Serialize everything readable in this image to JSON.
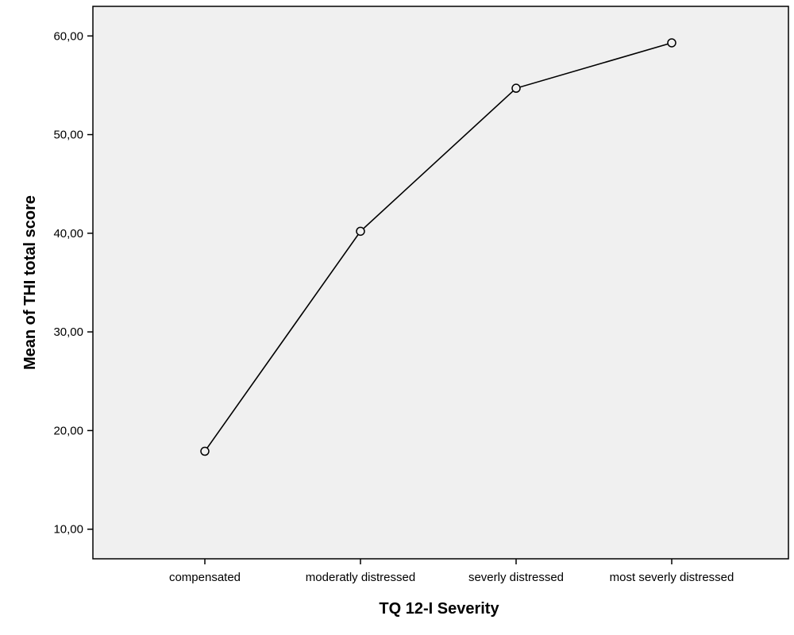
{
  "chart_data": {
    "type": "line",
    "categories": [
      "compensated",
      "moderatly distressed",
      "severly distressed",
      "most severly distressed"
    ],
    "values": [
      17.9,
      40.2,
      54.7,
      59.3
    ],
    "xlabel": "TQ 12-I Severity",
    "ylabel": "Mean of THI total score",
    "ylim": [
      7.0,
      63.0
    ],
    "yticks": [
      10,
      20,
      30,
      40,
      50,
      60
    ],
    "ytick_labels": [
      "10,00",
      "20,00",
      "30,00",
      "40,00",
      "50,00",
      "60,00"
    ],
    "grid": false,
    "markers": "open-circle",
    "colors": {
      "plot_bg": "#f0f0f0",
      "line": "#000000",
      "axis": "#000000"
    }
  }
}
